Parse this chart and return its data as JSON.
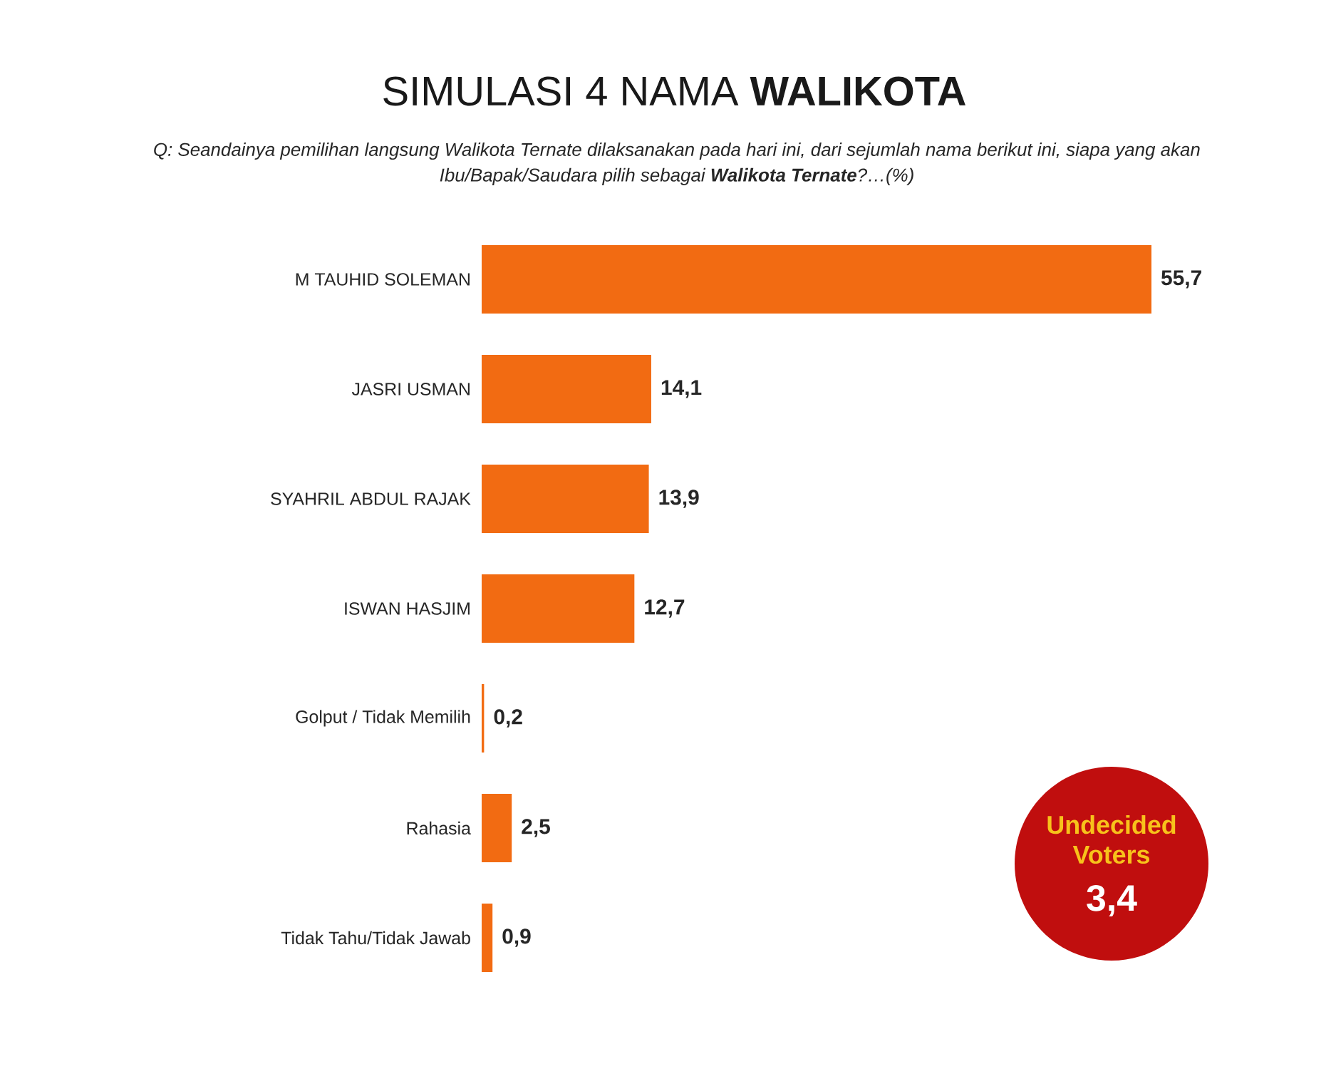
{
  "chart_data": {
    "type": "bar",
    "orientation": "horizontal",
    "title": "SIMULASI 4 NAMA **WALIKOTA**",
    "subtitle": "Q: Seandainya pemilihan langsung Walikota Ternate dilaksanakan pada hari ini, dari sejumlah nama berikut ini, siapa yang akan Ibu/Bapak/Saudara pilih sebagai **Walikota Ternate**?…(%)",
    "categories": [
      "M TAUHID SOLEMAN",
      "JASRI USMAN",
      "SYAHRIL ABDUL RAJAK",
      "ISWAN HASJIM",
      "Golput / Tidak Memilih",
      "Rahasia",
      "Tidak Tahu/Tidak Jawab"
    ],
    "values": [
      55.7,
      14.1,
      13.9,
      12.7,
      0.2,
      2.5,
      0.9
    ],
    "value_labels": [
      "55,7",
      "14,1",
      "13,9",
      "12,7",
      "0,2",
      "2,5",
      "0,9"
    ],
    "color": "#f26b12",
    "tick_labels": "y",
    "annotations": [
      "Undecided Voters",
      "3,4"
    ]
  }
}
